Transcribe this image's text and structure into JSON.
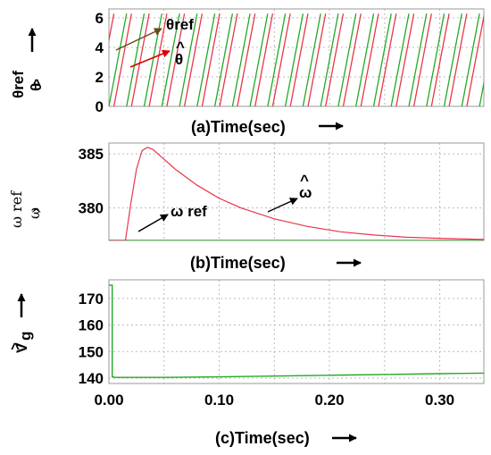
{
  "chart_data": [
    {
      "type": "line",
      "panel_label": "(a)Time(sec)",
      "ylabel_top": "θref",
      "ylabel_bottom": "θ",
      "ylim": [
        0,
        6.6
      ],
      "yticks": [
        "0",
        "2",
        "4",
        "6"
      ],
      "ytick_values": [
        0,
        2,
        4,
        6
      ],
      "xlim": [
        0,
        0.34
      ],
      "grid": true,
      "sawtooth_period": 0.016,
      "series": [
        {
          "role": "theta_ref",
          "color": "#22aa22",
          "phase": 0.0
        },
        {
          "role": "theta_hat",
          "color": "#e8364a",
          "phase": 0.0045
        }
      ],
      "annotations": [
        {
          "text": "θref",
          "arrow_color": "#6b4a1a"
        },
        {
          "text": "θ",
          "arrow_color": "#dd0000"
        }
      ]
    },
    {
      "type": "line",
      "panel_label": "(b)Time(sec)",
      "ylabel_top": "ω ref",
      "ylabel_bottom": "ω",
      "ylim": [
        377,
        386
      ],
      "yticks": [
        "385",
        "380"
      ],
      "ytick_values": [
        385,
        380
      ],
      "xlim": [
        0,
        0.34
      ],
      "grid": true,
      "series": [
        {
          "role": "omega_ref",
          "color": "#22aa22",
          "x": [
            0,
            0.34
          ],
          "y": [
            377,
            377
          ]
        },
        {
          "role": "omega_hat",
          "color": "#e8364a",
          "x": [
            0,
            0.015,
            0.02,
            0.025,
            0.03,
            0.035,
            0.04,
            0.05,
            0.06,
            0.08,
            0.1,
            0.12,
            0.15,
            0.18,
            0.21,
            0.24,
            0.27,
            0.3,
            0.34
          ],
          "y": [
            377,
            377,
            380.5,
            383.6,
            385.3,
            385.6,
            385.4,
            384.5,
            383.6,
            382.1,
            380.9,
            380.0,
            379.0,
            378.3,
            377.8,
            377.5,
            377.3,
            377.2,
            377.1
          ]
        }
      ],
      "annotations": [
        {
          "text": "ω ref"
        },
        {
          "text": "ω"
        }
      ]
    },
    {
      "type": "line",
      "panel_label": "(c)Time(sec)",
      "ylabel_top": "V",
      "ylabel_sub": "g",
      "ylim": [
        138,
        177
      ],
      "yticks": [
        "170",
        "160",
        "150",
        "140"
      ],
      "ytick_values": [
        170,
        160,
        150,
        140
      ],
      "xlim": [
        0,
        0.34
      ],
      "xticks": [
        "0.00",
        "0.10",
        "0.20",
        "0.30"
      ],
      "xtick_values": [
        0,
        0.1,
        0.2,
        0.3
      ],
      "grid": true,
      "series": [
        {
          "role": "vg_hat",
          "color": "#22aa22",
          "x": [
            0,
            0.003,
            0.003,
            0.006,
            0.05,
            0.1,
            0.15,
            0.2,
            0.25,
            0.3,
            0.34
          ],
          "y": [
            175,
            175,
            140.5,
            140.3,
            140.3,
            140.5,
            140.8,
            141.1,
            141.4,
            141.7,
            141.9
          ]
        }
      ]
    }
  ]
}
